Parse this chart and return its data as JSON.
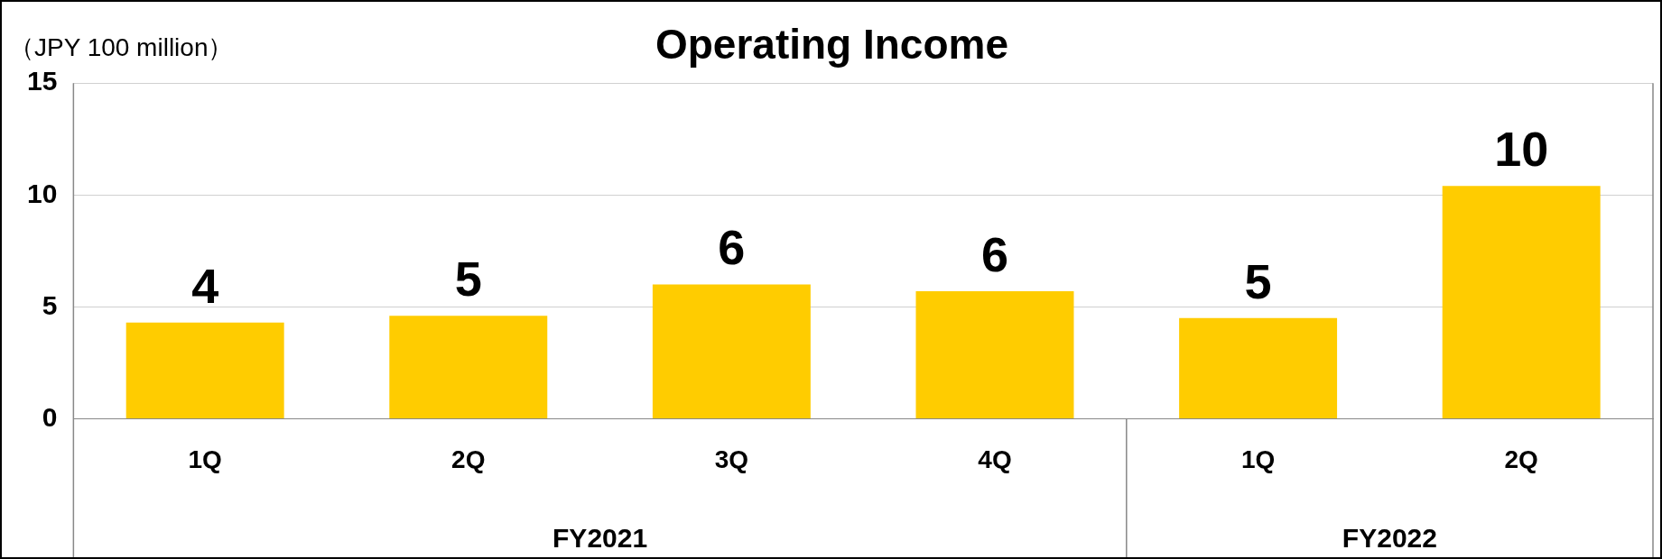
{
  "chart_data": {
    "type": "bar",
    "title": "Operating Income",
    "ylabel": "（JPY 100 million）",
    "categories": [
      "1Q",
      "2Q",
      "3Q",
      "4Q",
      "1Q",
      "2Q"
    ],
    "values": [
      4.3,
      4.6,
      6.0,
      5.7,
      4.5,
      10.4
    ],
    "value_labels": [
      "4",
      "5",
      "6",
      "6",
      "5",
      "10"
    ],
    "color": "#ffcc00",
    "ylim": [
      0,
      15
    ],
    "yticks": [
      0,
      5,
      10,
      15
    ],
    "grid": "y",
    "legend": false,
    "annotations": [
      "FY2021",
      "FY2022"
    ]
  }
}
